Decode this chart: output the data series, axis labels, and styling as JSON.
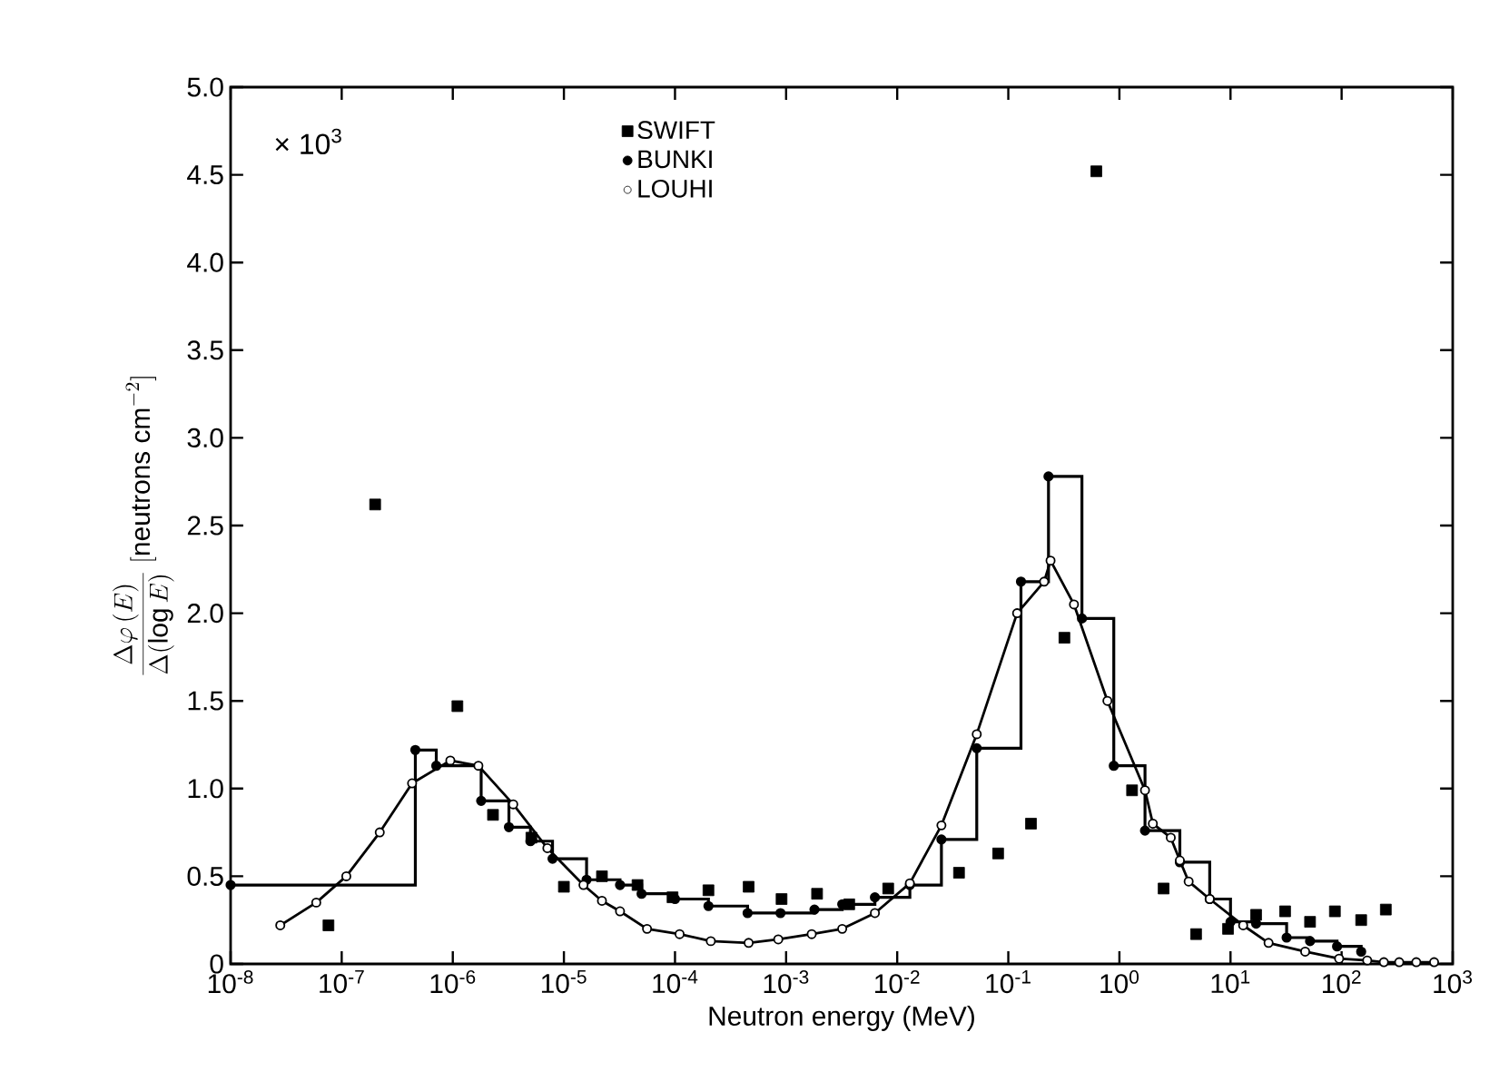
{
  "chart_data": {
    "type": "line",
    "xlabel": "Neutron energy (MeV)",
    "ylabel": "\\frac{\\Delta\\varphi\\,(E)}{\\Delta(\\log E)}\\;[\\mathrm{neutrons\\ cm}^{-2}]",
    "annotations": [
      "× 10$^{3}$"
    ],
    "log": "x",
    "legend": "top",
    "grid": false,
    "xlim": [
      1e-08,
      1000.0
    ],
    "ylim": [
      0,
      5
    ],
    "xticks": [
      {
        "value": 1e-08,
        "label": "10$^{-8}$"
      },
      {
        "value": 1e-07,
        "label": "10$^{-7}$"
      },
      {
        "value": 1e-06,
        "label": "10$^{-6}$"
      },
      {
        "value": 1e-05,
        "label": "10$^{-5}$"
      },
      {
        "value": 0.0001,
        "label": "10$^{-4}$"
      },
      {
        "value": 0.001,
        "label": "10$^{-3}$"
      },
      {
        "value": 0.01,
        "label": "10$^{-2}$"
      },
      {
        "value": 0.1,
        "label": "10$^{-1}$"
      },
      {
        "value": 1,
        "label": "10$^{0}$"
      },
      {
        "value": 10,
        "label": "10$^{1}$"
      },
      {
        "value": 100,
        "label": "10$^{2}$"
      },
      {
        "value": 1000,
        "label": "10$^{3}$"
      }
    ],
    "yticks": [
      0,
      0.5,
      {
        "value": 1,
        "label": "1.0"
      },
      1.5,
      {
        "value": 2,
        "label": "2.0"
      },
      2.5,
      {
        "value": 3,
        "label": "3.0"
      },
      3.5,
      {
        "value": 4,
        "label": "4.0"
      },
      4.5,
      {
        "value": 5,
        "label": "5.0"
      }
    ],
    "series": [
      {
        "name": "SWIFT",
        "type": "scatter",
        "marker": "square",
        "color": "#000000",
        "x": [
          7.6e-08,
          2e-07,
          1.1e-06,
          2.3e-06,
          5.1e-06,
          1e-05,
          2.2e-05,
          4.6e-05,
          9.5e-05,
          0.0002,
          0.00046,
          0.00091,
          0.0019,
          0.0037,
          0.0083,
          0.036,
          0.081,
          0.16,
          0.32,
          0.62,
          1.3,
          2.5,
          4.9,
          9.5,
          17,
          31,
          52,
          87,
          150,
          250
        ],
        "values": [
          0.22,
          2.62,
          1.47,
          0.85,
          0.72,
          0.44,
          0.5,
          0.45,
          0.38,
          0.42,
          0.44,
          0.37,
          0.4,
          0.34,
          0.43,
          0.52,
          0.63,
          0.8,
          1.86,
          4.52,
          0.99,
          0.43,
          0.17,
          0.2,
          0.28,
          0.3,
          0.24,
          0.3,
          0.25,
          0.31
        ]
      },
      {
        "name": "BUNKI",
        "type": "step",
        "marker": "circle",
        "color": "#000000",
        "x": [
          1e-08,
          4.6e-07,
          7.1e-07,
          1.8e-06,
          3.2e-06,
          5e-06,
          7.9e-06,
          1.6e-05,
          3.2e-05,
          5e-05,
          0.0001,
          0.0002,
          0.00045,
          0.00089,
          0.0018,
          0.0032,
          0.0063,
          0.013,
          0.025,
          0.052,
          0.13,
          0.23,
          0.46,
          0.89,
          1.7,
          3.5,
          6.5,
          10,
          17,
          32,
          52,
          91,
          150
        ],
        "values": [
          0.45,
          1.22,
          1.13,
          0.93,
          0.78,
          0.7,
          0.6,
          0.48,
          0.45,
          0.4,
          0.37,
          0.33,
          0.29,
          0.29,
          0.31,
          0.34,
          0.38,
          0.45,
          0.71,
          1.23,
          2.18,
          2.78,
          1.97,
          1.13,
          0.76,
          0.58,
          0.37,
          0.24,
          0.23,
          0.15,
          0.13,
          0.1,
          0.07
        ]
      },
      {
        "name": "LOUHI",
        "marker": "circle",
        "color": "#000000",
        "x": [
          2.8e-08,
          5.9e-08,
          1.1e-07,
          2.2e-07,
          4.3e-07,
          9.5e-07,
          1.7e-06,
          3.5e-06,
          7.1e-06,
          1.5e-05,
          2.2e-05,
          3.2e-05,
          5.6e-05,
          0.00011,
          0.00021,
          0.00046,
          0.00085,
          0.0017,
          0.0032,
          0.0063,
          0.013,
          0.025,
          0.052,
          0.12,
          0.21,
          0.24,
          0.39,
          0.78,
          1.7,
          2.0,
          2.9,
          3.5,
          4.2,
          6.5,
          13,
          22,
          47,
          95,
          170,
          240,
          330,
          470,
          680
        ],
        "values": [
          0.22,
          0.35,
          0.5,
          0.75,
          1.03,
          1.16,
          1.13,
          0.91,
          0.66,
          0.45,
          0.36,
          0.3,
          0.2,
          0.17,
          0.13,
          0.12,
          0.14,
          0.17,
          0.2,
          0.29,
          0.46,
          0.79,
          1.31,
          2.0,
          2.18,
          2.3,
          2.05,
          1.5,
          0.99,
          0.8,
          0.72,
          0.59,
          0.47,
          0.37,
          0.22,
          0.12,
          0.07,
          0.03,
          0.02,
          0.01,
          0.01,
          0.01,
          0.01
        ]
      }
    ]
  }
}
